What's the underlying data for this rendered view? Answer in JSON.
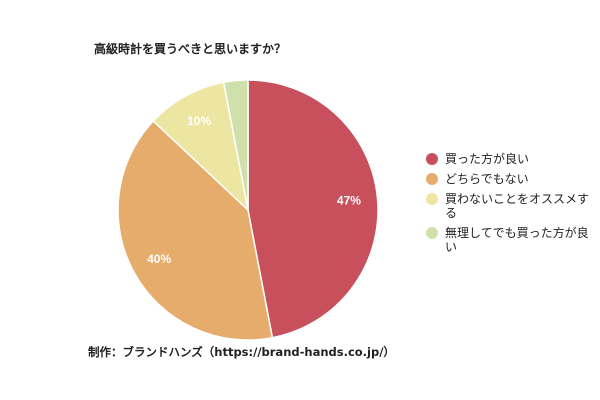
{
  "chart_data": {
    "type": "pie",
    "title": "高級時計を買うべきと思いますか？",
    "slices": [
      {
        "label": "買った方が良い",
        "value": 47,
        "display": "47%",
        "color": "#c84f5c"
      },
      {
        "label": "どちらでもない",
        "value": 40,
        "display": "40%",
        "color": "#e6ac6b"
      },
      {
        "label": "買わないことをオススメする",
        "value": 10,
        "display": "10%",
        "color": "#ede6a2"
      },
      {
        "label": "無理してでも買った方が良い",
        "value": 3,
        "display": "",
        "color": "#cfe0ab"
      }
    ],
    "legend_position": "right"
  },
  "credit": "制作：ブランドハンズ（https://brand-hands.co.jp/）"
}
